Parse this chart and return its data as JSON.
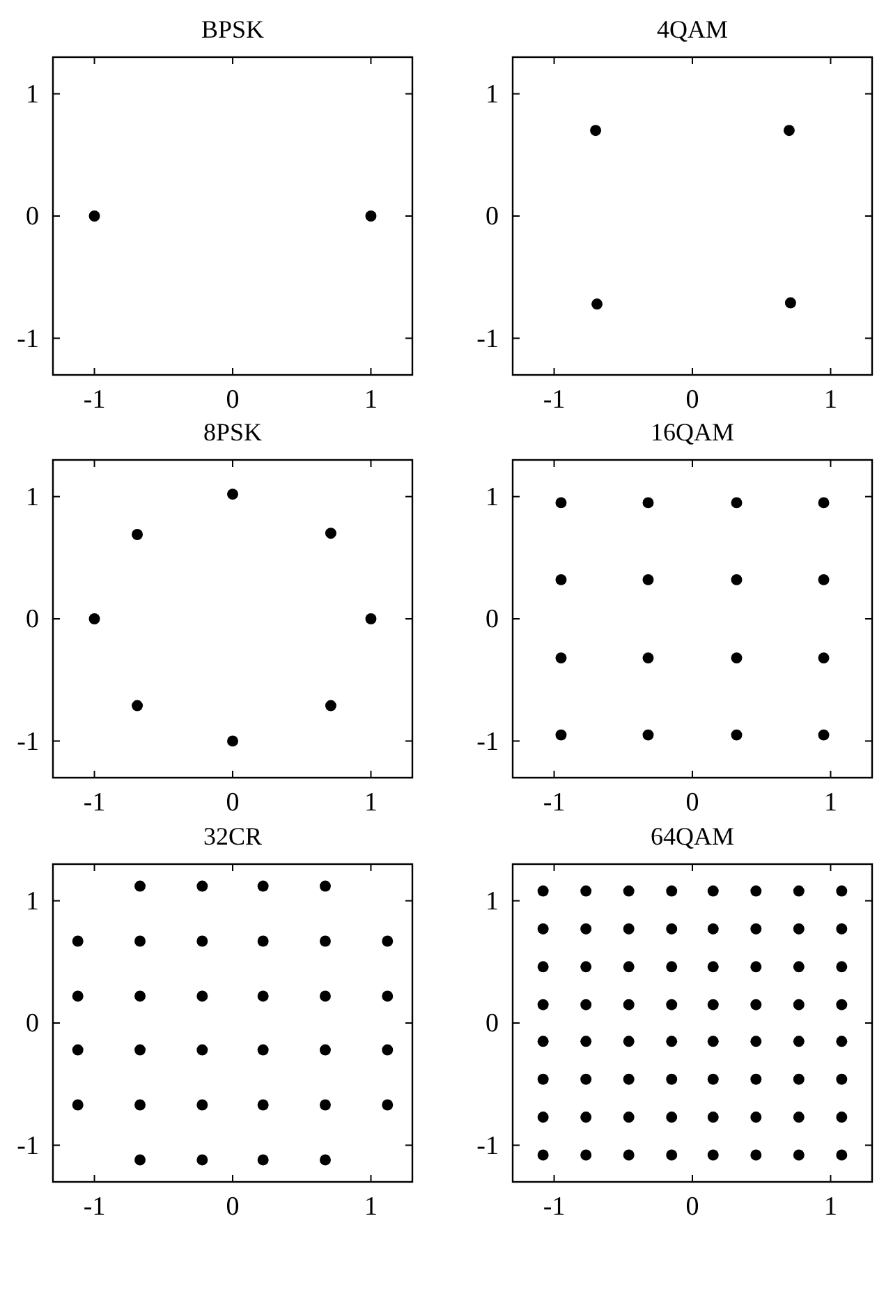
{
  "chart_data": [
    {
      "type": "scatter",
      "title": "BPSK",
      "marker": "circle",
      "xlim": [
        -1.3,
        1.3
      ],
      "ylim": [
        -1.3,
        1.3
      ],
      "xticks": [
        -1,
        0,
        1
      ],
      "yticks": [
        -1,
        0,
        1
      ],
      "series": [
        {
          "color": "#000000",
          "x": [
            -1,
            1
          ],
          "values": [
            0,
            0
          ]
        }
      ]
    },
    {
      "type": "scatter",
      "title": "4QAM",
      "marker": "circle",
      "xlim": [
        -1.3,
        1.3
      ],
      "ylim": [
        -1.3,
        1.3
      ],
      "xticks": [
        -1,
        0,
        1
      ],
      "yticks": [
        -1,
        0,
        1
      ],
      "series": [
        {
          "color": "#000000",
          "x": [
            -0.7,
            0.7,
            -0.69,
            0.71
          ],
          "values": [
            0.7,
            0.7,
            -0.72,
            -0.71
          ]
        }
      ]
    },
    {
      "type": "scatter",
      "title": "8PSK",
      "marker": "circle",
      "xlim": [
        -1.3,
        1.3
      ],
      "ylim": [
        -1.3,
        1.3
      ],
      "xticks": [
        -1,
        0,
        1
      ],
      "yticks": [
        -1,
        0,
        1
      ],
      "series": [
        {
          "color": "#000000",
          "x": [
            1,
            0.71,
            0,
            -0.69,
            -1,
            -0.69,
            0,
            0.71
          ],
          "values": [
            0,
            0.7,
            1.02,
            0.69,
            0,
            -0.71,
            -1,
            -0.71
          ]
        }
      ]
    },
    {
      "type": "scatter",
      "title": "16QAM",
      "marker": "circle",
      "xlim": [
        -1.3,
        1.3
      ],
      "ylim": [
        -1.3,
        1.3
      ],
      "xticks": [
        -1,
        0,
        1
      ],
      "yticks": [
        -1,
        0,
        1
      ],
      "series": [
        {
          "color": "#000000",
          "x": [
            -0.95,
            -0.32,
            0.32,
            0.95,
            -0.95,
            -0.32,
            0.32,
            0.95,
            -0.95,
            -0.32,
            0.32,
            0.95,
            -0.95,
            -0.32,
            0.32,
            0.95
          ],
          "values": [
            0.95,
            0.95,
            0.95,
            0.95,
            0.32,
            0.32,
            0.32,
            0.32,
            -0.32,
            -0.32,
            -0.32,
            -0.32,
            -0.95,
            -0.95,
            -0.95,
            -0.95
          ]
        }
      ]
    },
    {
      "type": "scatter",
      "title": "32CR",
      "marker": "circle",
      "xlim": [
        -1.3,
        1.3
      ],
      "ylim": [
        -1.3,
        1.3
      ],
      "xticks": [
        -1,
        0,
        1
      ],
      "yticks": [
        -1,
        0,
        1
      ],
      "series": [
        {
          "color": "#000000",
          "x": [
            -0.67,
            -0.22,
            0.22,
            0.67,
            -1.12,
            -0.67,
            -0.22,
            0.22,
            0.67,
            1.12,
            -1.12,
            -0.67,
            -0.22,
            0.22,
            0.67,
            1.12,
            -1.12,
            -0.67,
            -0.22,
            0.22,
            0.67,
            1.12,
            -1.12,
            -0.67,
            -0.22,
            0.22,
            0.67,
            1.12,
            -0.67,
            -0.22,
            0.22,
            0.67
          ],
          "values": [
            1.12,
            1.12,
            1.12,
            1.12,
            0.67,
            0.67,
            0.67,
            0.67,
            0.67,
            0.67,
            0.22,
            0.22,
            0.22,
            0.22,
            0.22,
            0.22,
            -0.22,
            -0.22,
            -0.22,
            -0.22,
            -0.22,
            -0.22,
            -0.67,
            -0.67,
            -0.67,
            -0.67,
            -0.67,
            -0.67,
            -1.12,
            -1.12,
            -1.12,
            -1.12
          ]
        }
      ]
    },
    {
      "type": "scatter",
      "title": "64QAM",
      "marker": "circle",
      "xlim": [
        -1.3,
        1.3
      ],
      "ylim": [
        -1.3,
        1.3
      ],
      "xticks": [
        -1,
        0,
        1
      ],
      "yticks": [
        -1,
        0,
        1
      ],
      "series": [
        {
          "color": "#000000",
          "x": [
            -1.08,
            -0.77,
            -0.46,
            -0.15,
            0.15,
            0.46,
            0.77,
            1.08,
            -1.08,
            -0.77,
            -0.46,
            -0.15,
            0.15,
            0.46,
            0.77,
            1.08,
            -1.08,
            -0.77,
            -0.46,
            -0.15,
            0.15,
            0.46,
            0.77,
            1.08,
            -1.08,
            -0.77,
            -0.46,
            -0.15,
            0.15,
            0.46,
            0.77,
            1.08,
            -1.08,
            -0.77,
            -0.46,
            -0.15,
            0.15,
            0.46,
            0.77,
            1.08,
            -1.08,
            -0.77,
            -0.46,
            -0.15,
            0.15,
            0.46,
            0.77,
            1.08,
            -1.08,
            -0.77,
            -0.46,
            -0.15,
            0.15,
            0.46,
            0.77,
            1.08,
            -1.08,
            -0.77,
            -0.46,
            -0.15,
            0.15,
            0.46,
            0.77,
            1.08
          ],
          "values": [
            1.08,
            1.08,
            1.08,
            1.08,
            1.08,
            1.08,
            1.08,
            1.08,
            0.77,
            0.77,
            0.77,
            0.77,
            0.77,
            0.77,
            0.77,
            0.77,
            0.46,
            0.46,
            0.46,
            0.46,
            0.46,
            0.46,
            0.46,
            0.46,
            0.15,
            0.15,
            0.15,
            0.15,
            0.15,
            0.15,
            0.15,
            0.15,
            -0.15,
            -0.15,
            -0.15,
            -0.15,
            -0.15,
            -0.15,
            -0.15,
            -0.15,
            -0.46,
            -0.46,
            -0.46,
            -0.46,
            -0.46,
            -0.46,
            -0.46,
            -0.46,
            -0.77,
            -0.77,
            -0.77,
            -0.77,
            -0.77,
            -0.77,
            -0.77,
            -0.77,
            -1.08,
            -1.08,
            -1.08,
            -1.08,
            -1.08,
            -1.08,
            -1.08,
            -1.08
          ]
        }
      ]
    }
  ]
}
